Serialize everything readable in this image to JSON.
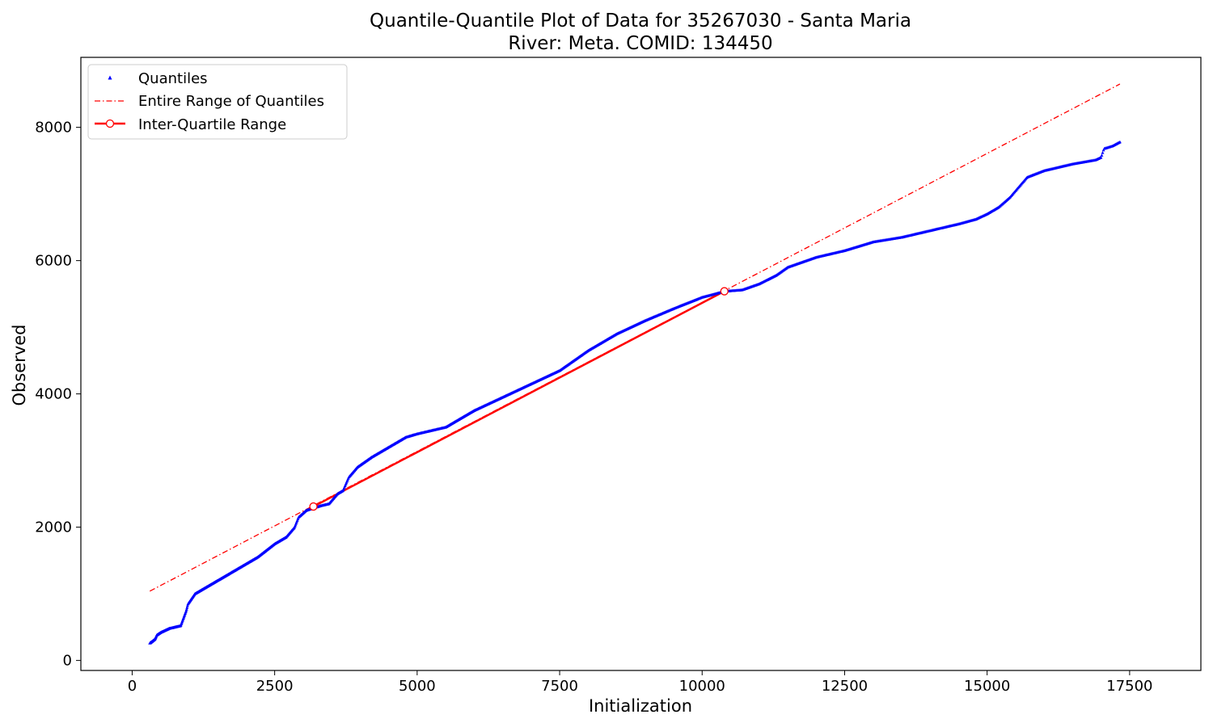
{
  "chart_data": {
    "type": "scatter",
    "title": "Quantile-Quantile Plot of Data for 35267030 - Santa Maria",
    "subtitle": "River: Meta. COMID: 134450",
    "xlabel": "Initialization",
    "ylabel": "Observed",
    "xlim": [
      -900,
      18750
    ],
    "ylim": [
      -150,
      9050
    ],
    "xticks": [
      0,
      2500,
      5000,
      7500,
      10000,
      12500,
      15000,
      17500
    ],
    "xtick_labels": [
      "0",
      "2500",
      "5000",
      "7500",
      "10000",
      "12500",
      "15000",
      "17500"
    ],
    "yticks": [
      0,
      2000,
      4000,
      6000,
      8000
    ],
    "ytick_labels": [
      "0",
      "2000",
      "4000",
      "6000",
      "8000"
    ],
    "grid": false,
    "legend_position": "top-left",
    "colors": {
      "quantiles": "#0000ff",
      "reference": "#ff0000"
    },
    "series": [
      {
        "name": "Quantiles",
        "style": "points",
        "x": [
          310,
          400,
          430,
          500,
          650,
          850,
          950,
          980,
          1100,
          1500,
          1900,
          2200,
          2500,
          2700,
          2850,
          2920,
          3050,
          3300,
          3450,
          3600,
          3700,
          3800,
          3950,
          4200,
          4500,
          4800,
          5000,
          5500,
          6000,
          6500,
          7000,
          7500,
          8000,
          8500,
          9000,
          9500,
          10000,
          10400,
          10700,
          11000,
          11300,
          11500,
          12000,
          12500,
          13000,
          13500,
          14000,
          14500,
          14800,
          15000,
          15200,
          15400,
          15600,
          15700,
          16000,
          16500,
          16900,
          17000,
          17050,
          17200,
          17330
        ],
        "y": [
          260,
          320,
          380,
          420,
          480,
          520,
          750,
          850,
          1000,
          1200,
          1400,
          1550,
          1750,
          1850,
          2000,
          2150,
          2250,
          2320,
          2350,
          2500,
          2550,
          2750,
          2900,
          3050,
          3200,
          3350,
          3400,
          3500,
          3750,
          3950,
          4150,
          4350,
          4650,
          4900,
          5100,
          5280,
          5450,
          5540,
          5560,
          5650,
          5780,
          5900,
          6050,
          6150,
          6280,
          6350,
          6450,
          6550,
          6620,
          6700,
          6800,
          6950,
          7150,
          7250,
          7350,
          7450,
          7510,
          7550,
          7680,
          7720,
          7780
        ]
      },
      {
        "name": "Entire Range of Quantiles",
        "style": "dash-dot",
        "x": [
          310,
          17330
        ],
        "y": [
          1040,
          8650
        ]
      },
      {
        "name": "Inter-Quartile Range",
        "style": "line-with-markers",
        "x": [
          3180,
          10390
        ],
        "y": [
          2310,
          5540
        ]
      }
    ]
  }
}
